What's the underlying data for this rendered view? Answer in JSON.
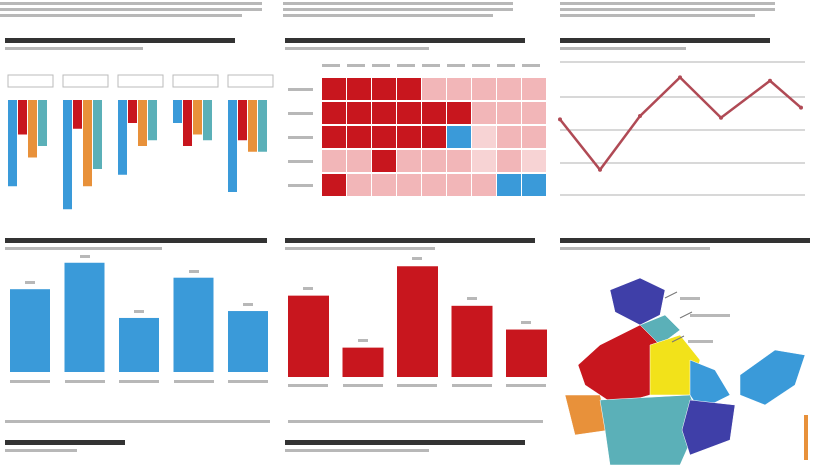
{
  "colors": {
    "blue": "#3a9ad9",
    "red": "#c8161e",
    "orange": "#e8913a",
    "teal": "#5bb0b8",
    "pink": "#f2b6b8",
    "lightpink": "#f7d3d4",
    "yellow": "#f2e21a",
    "navy": "#3f3fa8"
  },
  "chart_data": [
    {
      "type": "bar",
      "id": "grouped-drop",
      "series": [
        {
          "values": [
            75,
            95,
            65,
            20,
            80
          ]
        },
        {
          "values": [
            30,
            25,
            20,
            40,
            35
          ]
        },
        {
          "values": [
            50,
            75,
            40,
            30,
            45
          ]
        },
        {
          "values": [
            40,
            60,
            35,
            35,
            45
          ]
        }
      ],
      "categories": [
        "",
        "",
        "",
        "",
        ""
      ]
    },
    {
      "type": "heatmap",
      "id": "heat",
      "rows": 5,
      "cols": 9,
      "levels": [
        [
          3,
          3,
          3,
          3,
          1,
          1,
          1,
          1,
          1
        ],
        [
          3,
          3,
          3,
          3,
          3,
          3,
          1,
          1,
          1
        ],
        [
          3,
          3,
          3,
          3,
          3,
          -1,
          0,
          1,
          1
        ],
        [
          1,
          1,
          3,
          1,
          1,
          1,
          0,
          1,
          0
        ],
        [
          3,
          1,
          1,
          1,
          1,
          1,
          1,
          -1,
          -1
        ]
      ]
    },
    {
      "type": "line",
      "id": "trend",
      "values": [
        45,
        15,
        47,
        70,
        46,
        68,
        52
      ],
      "ylim": [
        0,
        80
      ],
      "grid": true
    },
    {
      "type": "bar",
      "id": "blue-bars",
      "values": [
        72,
        95,
        47,
        82,
        53
      ],
      "ylim": [
        0,
        100
      ]
    },
    {
      "type": "bar",
      "id": "red-bars",
      "values": [
        72,
        26,
        98,
        63,
        42
      ],
      "ylim": [
        0,
        100
      ]
    },
    {
      "type": "map",
      "id": "region-map"
    }
  ]
}
